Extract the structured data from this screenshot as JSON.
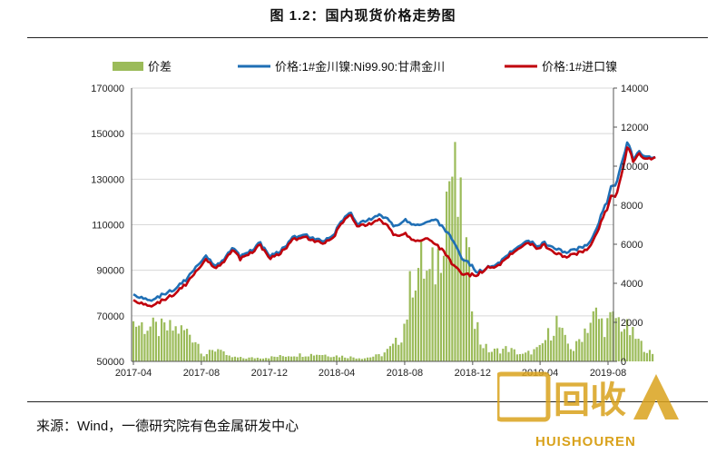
{
  "page": {
    "title": "图 1.2：国内现货价格走势图",
    "source": "来源：Wind，一德研究院有色金属研发中心"
  },
  "watermark": {
    "logo_text": "回收",
    "brand_text": "HUISHOUREN",
    "color": "#d9a21c"
  },
  "chart_data": {
    "type": "line",
    "title": "",
    "x_tick_labels": [
      "2017-04",
      "2017-08",
      "2017-12",
      "2018-04",
      "2018-08",
      "2018-12",
      "2019-04",
      "2019-08"
    ],
    "y_left": {
      "min": 50000,
      "max": 170000,
      "ticks": [
        50000,
        70000,
        90000,
        110000,
        130000,
        150000,
        170000
      ]
    },
    "y_right": {
      "min": 0,
      "max": 14000,
      "ticks": [
        0,
        2000,
        4000,
        6000,
        8000,
        10000,
        12000,
        14000
      ]
    },
    "grid": "horizontal",
    "legend_position": "top",
    "series": [
      {
        "name": "价差",
        "kind": "bar",
        "axis": "right",
        "color": "#9bbb59",
        "points": [
          [
            "2017-04-01",
            2400
          ],
          [
            "2017-04-20",
            2200
          ],
          [
            "2017-05-15",
            2000
          ],
          [
            "2017-06-15",
            2000
          ],
          [
            "2017-07-10",
            1800
          ],
          [
            "2017-07-25",
            1200
          ],
          [
            "2017-08-05",
            400
          ],
          [
            "2017-08-20",
            600
          ],
          [
            "2017-09-05",
            900
          ],
          [
            "2017-09-15",
            300
          ],
          [
            "2017-10-15",
            200
          ],
          [
            "2017-12-01",
            250
          ],
          [
            "2018-01-15",
            400
          ],
          [
            "2018-03-01",
            450
          ],
          [
            "2018-04-15",
            300
          ],
          [
            "2018-05-20",
            200
          ],
          [
            "2018-06-20",
            400
          ],
          [
            "2018-07-10",
            900
          ],
          [
            "2018-07-25",
            1500
          ],
          [
            "2018-08-05",
            3000
          ],
          [
            "2018-08-15",
            5500
          ],
          [
            "2018-09-01",
            6000
          ],
          [
            "2018-09-15",
            5000
          ],
          [
            "2018-10-01",
            6500
          ],
          [
            "2018-10-10",
            9500
          ],
          [
            "2018-10-20",
            11500
          ],
          [
            "2018-10-25",
            11800
          ],
          [
            "2018-11-05",
            9500
          ],
          [
            "2018-11-20",
            6500
          ],
          [
            "2018-12-05",
            3000
          ],
          [
            "2018-12-15",
            1200
          ],
          [
            "2019-01-01",
            600
          ],
          [
            "2019-02-01",
            800
          ],
          [
            "2019-03-01",
            400
          ],
          [
            "2019-04-01",
            800
          ],
          [
            "2019-05-01",
            2500
          ],
          [
            "2019-05-15",
            1300
          ],
          [
            "2019-06-01",
            700
          ],
          [
            "2019-06-20",
            2000
          ],
          [
            "2019-07-10",
            2900
          ],
          [
            "2019-07-25",
            2200
          ],
          [
            "2019-08-15",
            2700
          ],
          [
            "2019-09-10",
            1800
          ],
          [
            "2019-10-01",
            1000
          ],
          [
            "2019-10-20",
            400
          ]
        ]
      },
      {
        "name": "价格:1#金川镍:Ni99.90:甘肃金川",
        "kind": "line",
        "axis": "left",
        "color": "#1f6fb5",
        "points": [
          [
            "2017-04-01",
            79000
          ],
          [
            "2017-04-15",
            78000
          ],
          [
            "2017-05-05",
            77000
          ],
          [
            "2017-05-25",
            79500
          ],
          [
            "2017-06-15",
            82000
          ],
          [
            "2017-07-05",
            86000
          ],
          [
            "2017-07-25",
            92000
          ],
          [
            "2017-08-10",
            96000
          ],
          [
            "2017-08-25",
            92000
          ],
          [
            "2017-09-10",
            94000
          ],
          [
            "2017-09-25",
            100000
          ],
          [
            "2017-10-10",
            96000
          ],
          [
            "2017-10-25",
            98000
          ],
          [
            "2017-11-15",
            102000
          ],
          [
            "2017-12-01",
            96000
          ],
          [
            "2017-12-20",
            98000
          ],
          [
            "2018-01-10",
            104000
          ],
          [
            "2018-02-01",
            106000
          ],
          [
            "2018-02-20",
            104000
          ],
          [
            "2018-03-10",
            103000
          ],
          [
            "2018-03-25",
            105000
          ],
          [
            "2018-04-10",
            112000
          ],
          [
            "2018-04-25",
            116000
          ],
          [
            "2018-05-10",
            110000
          ],
          [
            "2018-05-25",
            112000
          ],
          [
            "2018-06-15",
            114000
          ],
          [
            "2018-07-01",
            113000
          ],
          [
            "2018-07-15",
            109000
          ],
          [
            "2018-08-01",
            112000
          ],
          [
            "2018-08-20",
            110000
          ],
          [
            "2018-09-10",
            111000
          ],
          [
            "2018-09-25",
            113000
          ],
          [
            "2018-10-10",
            108000
          ],
          [
            "2018-10-25",
            104000
          ],
          [
            "2018-11-10",
            96000
          ],
          [
            "2018-11-25",
            93000
          ],
          [
            "2018-12-10",
            89000
          ],
          [
            "2018-12-25",
            91000
          ],
          [
            "2019-01-15",
            93000
          ],
          [
            "2019-02-01",
            97000
          ],
          [
            "2019-02-20",
            100000
          ],
          [
            "2019-03-10",
            103000
          ],
          [
            "2019-03-25",
            101000
          ],
          [
            "2019-04-10",
            102000
          ],
          [
            "2019-04-25",
            100000
          ],
          [
            "2019-05-15",
            98000
          ],
          [
            "2019-05-30",
            99000
          ],
          [
            "2019-06-15",
            100000
          ],
          [
            "2019-06-30",
            102000
          ],
          [
            "2019-07-10",
            107000
          ],
          [
            "2019-07-20",
            115000
          ],
          [
            "2019-07-30",
            120000
          ],
          [
            "2019-08-05",
            126000
          ],
          [
            "2019-08-15",
            128000
          ],
          [
            "2019-08-25",
            136000
          ],
          [
            "2019-09-05",
            147000
          ],
          [
            "2019-09-15",
            139000
          ],
          [
            "2019-09-25",
            142000
          ],
          [
            "2019-10-10",
            140000
          ],
          [
            "2019-10-25",
            139000
          ]
        ]
      },
      {
        "name": "价格:1#进口镍",
        "kind": "line",
        "axis": "left",
        "color": "#c0000c",
        "points": [
          [
            "2017-04-01",
            76500
          ],
          [
            "2017-04-15",
            75500
          ],
          [
            "2017-05-05",
            74500
          ],
          [
            "2017-05-25",
            77000
          ],
          [
            "2017-06-15",
            80000
          ],
          [
            "2017-07-05",
            84000
          ],
          [
            "2017-07-25",
            90000
          ],
          [
            "2017-08-10",
            94500
          ],
          [
            "2017-08-25",
            91000
          ],
          [
            "2017-09-10",
            93000
          ],
          [
            "2017-09-25",
            99000
          ],
          [
            "2017-10-10",
            95000
          ],
          [
            "2017-10-25",
            97000
          ],
          [
            "2017-11-15",
            101000
          ],
          [
            "2017-12-01",
            95000
          ],
          [
            "2017-12-20",
            97000
          ],
          [
            "2018-01-10",
            103000
          ],
          [
            "2018-02-01",
            105000
          ],
          [
            "2018-02-20",
            103000
          ],
          [
            "2018-03-10",
            102000
          ],
          [
            "2018-03-25",
            104000
          ],
          [
            "2018-04-10",
            111000
          ],
          [
            "2018-04-25",
            115000
          ],
          [
            "2018-05-10",
            109000
          ],
          [
            "2018-05-25",
            110000
          ],
          [
            "2018-06-15",
            112000
          ],
          [
            "2018-07-01",
            110000
          ],
          [
            "2018-07-15",
            105000
          ],
          [
            "2018-08-01",
            106000
          ],
          [
            "2018-08-20",
            103000
          ],
          [
            "2018-09-10",
            104000
          ],
          [
            "2018-09-25",
            102000
          ],
          [
            "2018-10-10",
            98000
          ],
          [
            "2018-10-25",
            93000
          ],
          [
            "2018-11-10",
            89000
          ],
          [
            "2018-11-25",
            88000
          ],
          [
            "2018-12-10",
            88000
          ],
          [
            "2018-12-25",
            91000
          ],
          [
            "2019-01-15",
            92000
          ],
          [
            "2019-02-01",
            96000
          ],
          [
            "2019-02-20",
            99000
          ],
          [
            "2019-03-10",
            102000
          ],
          [
            "2019-03-25",
            100000
          ],
          [
            "2019-04-10",
            101000
          ],
          [
            "2019-04-25",
            98000
          ],
          [
            "2019-05-15",
            96000
          ],
          [
            "2019-05-30",
            97000
          ],
          [
            "2019-06-15",
            98000
          ],
          [
            "2019-06-30",
            100000
          ],
          [
            "2019-07-10",
            105000
          ],
          [
            "2019-07-20",
            112000
          ],
          [
            "2019-07-30",
            117000
          ],
          [
            "2019-08-05",
            122000
          ],
          [
            "2019-08-15",
            123000
          ],
          [
            "2019-08-25",
            131000
          ],
          [
            "2019-09-05",
            145000
          ],
          [
            "2019-09-15",
            138000
          ],
          [
            "2019-09-25",
            141000
          ],
          [
            "2019-10-10",
            139000
          ],
          [
            "2019-10-25",
            139000
          ]
        ]
      }
    ]
  }
}
